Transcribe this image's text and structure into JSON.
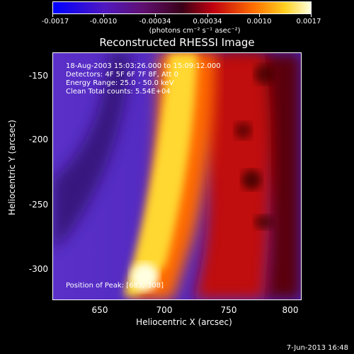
{
  "colorbar": {
    "ticks": [
      "-0.0017",
      "-0.0010",
      "-0.00034",
      "0.00034",
      "0.0010",
      "0.0017"
    ],
    "units": "(photons cm⁻² s⁻¹ asec⁻²)"
  },
  "title": "Reconstructed RHESSI Image",
  "info": {
    "time": "18-Aug-2003 15:03:26.000 to 15:09:12.000",
    "detectors": "Detectors: 4F 5F 6F 7F 8F, Att 0",
    "energy": "Energy Range: 25.0 - 50.0 keV",
    "algorithm": "Clean     Total counts: 5.54E+04",
    "peak": "Position of Peak: [683,-308]"
  },
  "axes": {
    "xlabel": "Heliocentric X (arcsec)",
    "ylabel": "Heliocentric Y (arcsec)",
    "xticks": [
      "650",
      "700",
      "750",
      "800"
    ],
    "yticks": [
      "-150",
      "-200",
      "-250",
      "-300"
    ]
  },
  "footer": {
    "date": "7-Jun-2013 16:48"
  },
  "colors": {
    "background": "#000000",
    "low": "#3b1ad0",
    "mid": "#d01010",
    "high": "#ffffc0"
  }
}
